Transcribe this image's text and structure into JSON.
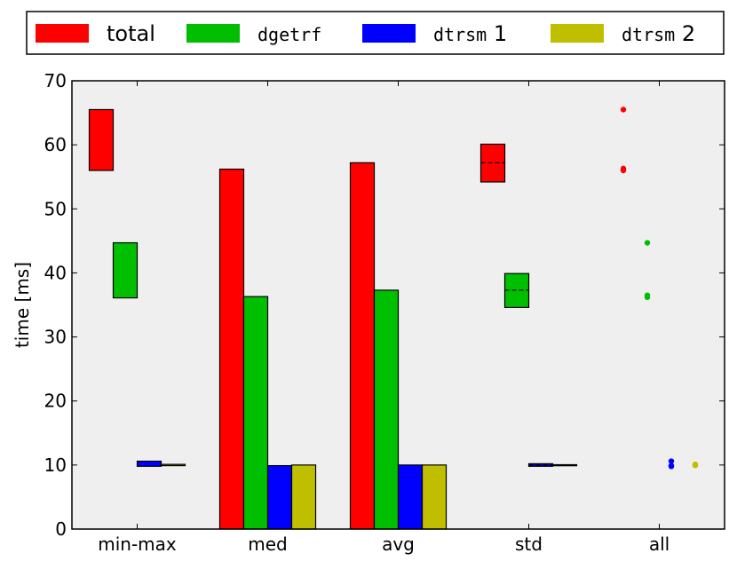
{
  "chart_data": {
    "type": "bar",
    "title": "",
    "ylabel": "time [ms]",
    "xlabel": "",
    "ylim": [
      0,
      70
    ],
    "yticks": [
      0,
      10,
      20,
      30,
      40,
      50,
      60,
      70
    ],
    "categories": [
      "min-max",
      "med",
      "avg",
      "std",
      "all"
    ],
    "grid": false,
    "legend_position": "top, above plot",
    "background_color": "#efefef",
    "series": [
      {
        "name": "total",
        "legend_label": {
          "parts": [
            {
              "text": "total",
              "mono": false
            }
          ]
        },
        "color": "#ff0000",
        "minmax": [
          56.0,
          65.5
        ],
        "median": 56.2,
        "avg": 57.2,
        "std": {
          "mean": 57.2,
          "low": 54.2,
          "high": 60.1
        },
        "all": [
          65.5,
          56.3,
          56.0
        ]
      },
      {
        "name": "dgetrf",
        "legend_label": {
          "parts": [
            {
              "text": "dgetrf",
              "mono": true
            }
          ]
        },
        "color": "#00bf00",
        "minmax": [
          36.1,
          44.7
        ],
        "median": 36.3,
        "avg": 37.3,
        "std": {
          "mean": 37.3,
          "low": 34.6,
          "high": 39.9
        },
        "all": [
          44.7,
          36.5,
          36.2
        ]
      },
      {
        "name": "dtrsm 1",
        "legend_label": {
          "parts": [
            {
              "text": "dtrsm",
              "mono": true
            },
            {
              "text": " 1",
              "mono": false
            }
          ]
        },
        "color": "#0000ff",
        "minmax": [
          9.8,
          10.6
        ],
        "median": 9.9,
        "avg": 10.0,
        "std": {
          "mean": 10.0,
          "low": 9.8,
          "high": 10.2
        },
        "all": [
          10.6,
          9.9,
          9.8
        ]
      },
      {
        "name": "dtrsm 2",
        "legend_label": {
          "parts": [
            {
              "text": "dtrsm",
              "mono": true
            },
            {
              "text": " 2",
              "mono": false
            }
          ]
        },
        "color": "#bfbf00",
        "minmax": [
          9.9,
          10.1
        ],
        "median": 10.0,
        "avg": 10.0,
        "std": {
          "mean": 10.0,
          "low": 9.95,
          "high": 10.05
        },
        "all": [
          10.1,
          10.0,
          9.95
        ]
      }
    ]
  }
}
